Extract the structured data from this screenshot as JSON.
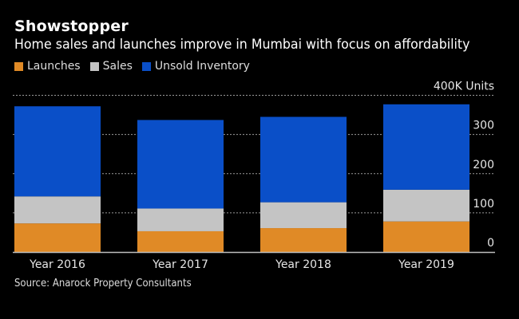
{
  "chart_data": {
    "type": "bar",
    "stacked": true,
    "title": "Showstopper",
    "subtitle": "Home sales and launches improve in Mumbai with focus on affordability",
    "categories": [
      "Year 2016",
      "Year 2017",
      "Year 2018",
      "Year 2019"
    ],
    "series": [
      {
        "name": "Launches",
        "color": "#E08A26",
        "values": [
          73,
          53,
          61,
          78
        ]
      },
      {
        "name": "Sales",
        "color": "#C4C4C4",
        "values": [
          69,
          58,
          66,
          81
        ]
      },
      {
        "name": "Unsold Inventory",
        "color": "#0A4FC8",
        "values": [
          230,
          226,
          218,
          218
        ]
      }
    ],
    "yaxis": {
      "ticks": [
        0,
        100,
        200,
        300,
        400
      ],
      "tick_labels": [
        "0",
        "100",
        "200",
        "300",
        "400K Units"
      ],
      "position": "right",
      "grid": "dotted"
    },
    "ylim": [
      0,
      400
    ],
    "xlabel": "",
    "ylabel": "K Units",
    "legend_position": "top-left",
    "source": "Source: Anarock Property Consultants"
  }
}
